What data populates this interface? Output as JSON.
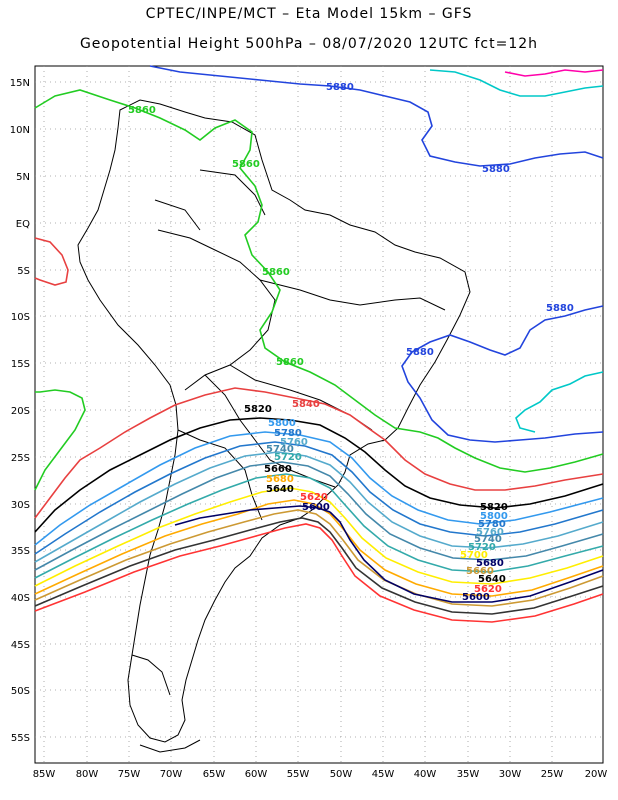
{
  "header": {
    "line1": "CPTEC/INPE/MCT –  Eta Model 15km – GFS",
    "line2": "Geopotential Height 500hPa – 08/07/2020 12UTC fct=12h"
  },
  "axes": {
    "lon_labels": [
      "85W",
      "80W",
      "75W",
      "70W",
      "65W",
      "60W",
      "55W",
      "50W",
      "45W",
      "40W",
      "35W",
      "30W",
      "25W",
      "20W"
    ],
    "lat_labels": [
      "15N",
      "10N",
      "5N",
      "EQ",
      "5S",
      "10S",
      "15S",
      "20S",
      "25S",
      "30S",
      "35S",
      "40S",
      "45S",
      "50S",
      "55S"
    ],
    "grid": true
  },
  "contours": {
    "c5880": "5880",
    "c5860": "5860",
    "c5840": "5840",
    "c5820": "5820",
    "c5800": "5800",
    "c5780": "5780",
    "c5760": "5760",
    "c5740": "5740",
    "c5720": "5720",
    "c5700": "5700",
    "c5680": "5680",
    "c5660": "5660",
    "c5640": "5640",
    "c5620": "5620",
    "c5600": "5600"
  },
  "colors": {
    "c5900": "#ff00aa",
    "c5880": "#2244dd",
    "c5880b": "#00c8c8",
    "c5860": "#22cc22",
    "c5840": "#e84040",
    "c5820": "#000000",
    "c5800": "#3399ee",
    "c5780": "#2277cc",
    "c5760": "#55aacc",
    "c5740": "#4488aa",
    "c5720": "#33aaaa",
    "c5700": "#ffee00",
    "c5680": "#ffaa00",
    "c5660": "#cc9933",
    "c5640": "#333333",
    "c5620": "#ff3333",
    "c5600": "#000066"
  }
}
